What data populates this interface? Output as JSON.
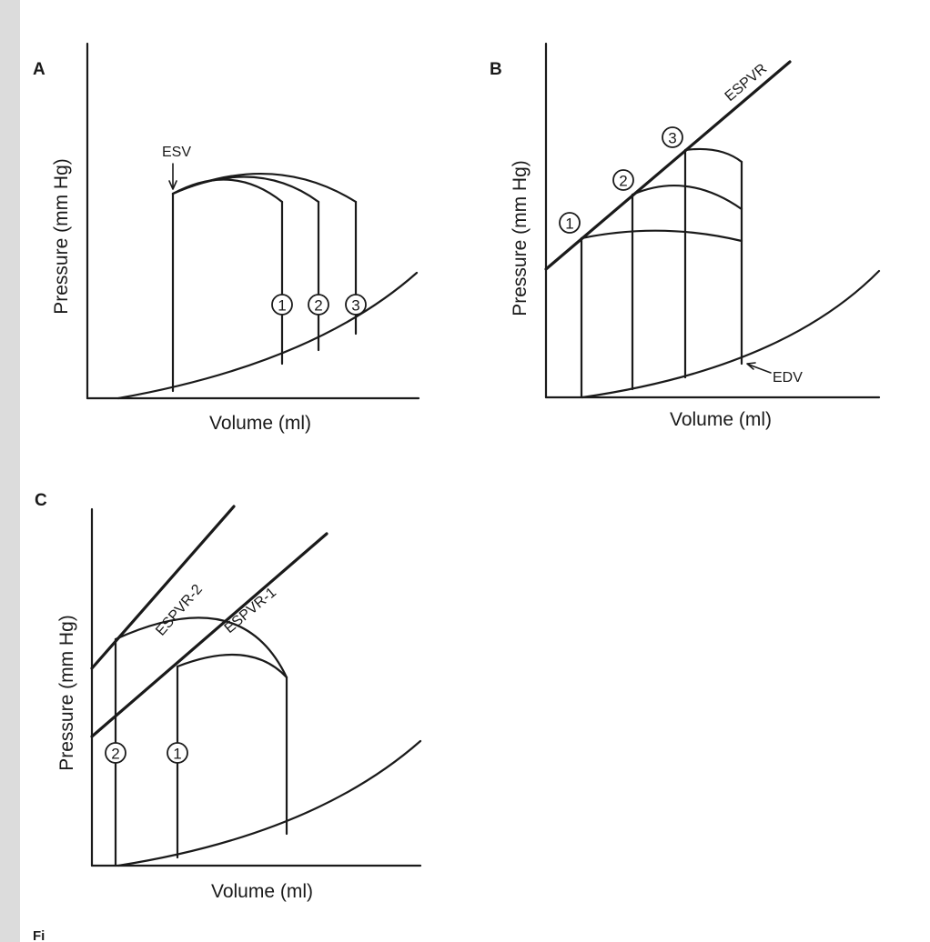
{
  "panels": {
    "a": {
      "letter": "A",
      "ylabel": "Pressure (mm Hg)",
      "xlabel": "Volume (ml)",
      "esv_label": "ESV",
      "loops": [
        "1",
        "2",
        "3"
      ]
    },
    "b": {
      "letter": "B",
      "ylabel": "Pressure (mm Hg)",
      "xlabel": "Volume (ml)",
      "espvr_label": "ESPVR",
      "edv_label": "EDV",
      "loops": [
        "1",
        "2",
        "3"
      ]
    },
    "c": {
      "letter": "C",
      "ylabel": "Pressure (mm Hg)",
      "xlabel": "Volume (ml)",
      "espvr1_label": "ESPVR-1",
      "espvr2_label": "ESPVR-2",
      "loops": [
        "1",
        "2"
      ]
    }
  },
  "caption_fragment": "Fi",
  "colors": {
    "ink": "#1a1a1a",
    "background": "#ffffff"
  }
}
